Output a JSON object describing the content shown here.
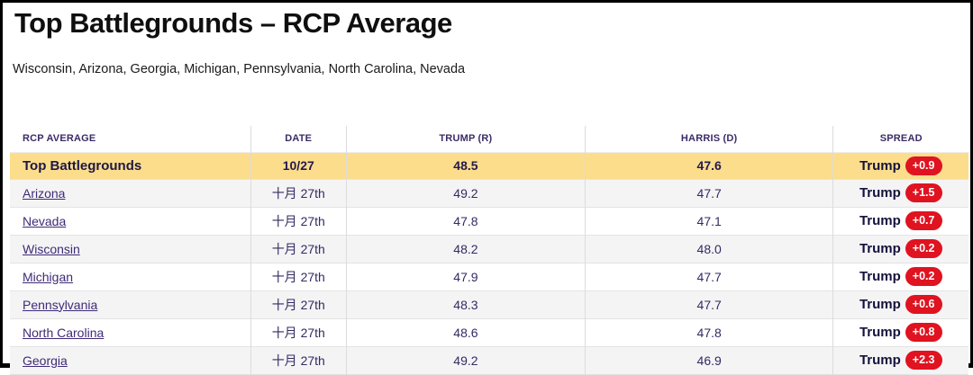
{
  "page": {
    "title": "Top Battlegrounds – RCP Average",
    "subtitle": "Wisconsin, Arizona, Georgia, Michigan, Pennsylvania, North Carolina, Nevada"
  },
  "table": {
    "columns": [
      "RCP AVERAGE",
      "DATE",
      "TRUMP (R)",
      "HARRIS (D)",
      "SPREAD"
    ],
    "summary_row": {
      "name": "Top Battlegrounds",
      "date": "10/27",
      "trump": "48.5",
      "harris": "47.6",
      "spread_label": "Trump",
      "spread_value": "+0.9"
    },
    "rows": [
      {
        "name": "Arizona",
        "date": "十月 27th",
        "trump": "49.2",
        "harris": "47.7",
        "spread_label": "Trump",
        "spread_value": "+1.5"
      },
      {
        "name": "Nevada",
        "date": "十月 27th",
        "trump": "47.8",
        "harris": "47.1",
        "spread_label": "Trump",
        "spread_value": "+0.7"
      },
      {
        "name": "Wisconsin",
        "date": "十月 27th",
        "trump": "48.2",
        "harris": "48.0",
        "spread_label": "Trump",
        "spread_value": "+0.2"
      },
      {
        "name": "Michigan",
        "date": "十月 27th",
        "trump": "47.9",
        "harris": "47.7",
        "spread_label": "Trump",
        "spread_value": "+0.2"
      },
      {
        "name": "Pennsylvania",
        "date": "十月 27th",
        "trump": "48.3",
        "harris": "47.7",
        "spread_label": "Trump",
        "spread_value": "+0.6"
      },
      {
        "name": "North Carolina",
        "date": "十月 27th",
        "trump": "48.6",
        "harris": "47.8",
        "spread_label": "Trump",
        "spread_value": "+0.8"
      },
      {
        "name": "Georgia",
        "date": "十月 27th",
        "trump": "49.2",
        "harris": "46.9",
        "spread_label": "Trump",
        "spread_value": "+2.3"
      }
    ]
  },
  "colors": {
    "highlight_row": "#fcdd8c",
    "badge_red": "#e01320",
    "header_text": "#3c2b66",
    "body_text": "#352a63",
    "link_purple": "#3f2b76",
    "alt_row": "#f4f4f5"
  }
}
